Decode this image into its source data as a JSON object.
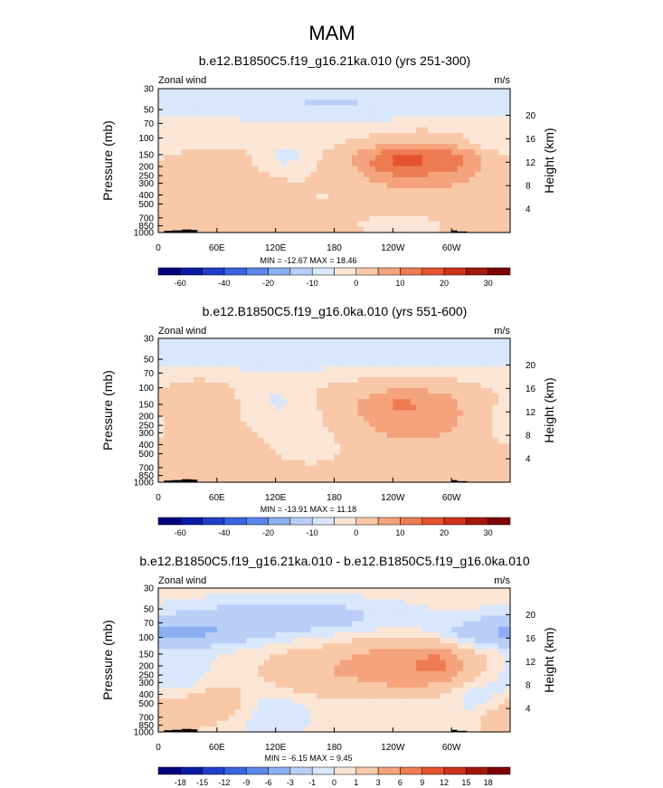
{
  "main_title": "MAM",
  "palettes": {
    "wind": [
      "#00007f",
      "#0b1aa6",
      "#1f3fc9",
      "#3a63e0",
      "#5b86eb",
      "#8bb0f2",
      "#b8cef6",
      "#d8e7fb",
      "#fbe6d6",
      "#f8c8a8",
      "#f4a37c",
      "#ee7b51",
      "#e4542d",
      "#cc3219",
      "#a3160b",
      "#7f0000"
    ]
  },
  "chart_data": [
    {
      "type": "heatmap",
      "id": "panel1",
      "title": "b.e12.B1850C5.f19_g16.21ka.010 (yrs 251-300)",
      "left_label": "Zonal wind",
      "right_label": "m/s",
      "ylabel": "Pressure (mb)",
      "y2label": "Height (km)",
      "y_ticks": [
        30,
        50,
        70,
        100,
        150,
        200,
        250,
        300,
        400,
        500,
        700,
        850,
        1000
      ],
      "y2_ticks": [
        4,
        8,
        12,
        16,
        20
      ],
      "x_ticks": [
        {
          "lon": 0,
          "label": "0"
        },
        {
          "lon": 60,
          "label": "60E"
        },
        {
          "lon": 120,
          "label": "120E"
        },
        {
          "lon": 180,
          "label": "180"
        },
        {
          "lon": 240,
          "label": "120W"
        },
        {
          "lon": 300,
          "label": "60W"
        }
      ],
      "xlim": [
        0,
        360
      ],
      "ylim_mb": [
        1000,
        30
      ],
      "stats": "MIN = -12.67  MAX = 18.46",
      "min": -12.67,
      "max": 18.46,
      "levels": [
        -70,
        -60,
        -50,
        -40,
        -30,
        -20,
        -15,
        -10,
        -5,
        0,
        5,
        10,
        15,
        20,
        25,
        30,
        35
      ],
      "colorbar_labels": [
        {
          "after": 1,
          "label": "-60"
        },
        {
          "after": 3,
          "label": "-40"
        },
        {
          "after": 5,
          "label": "-20"
        },
        {
          "after": 7,
          "label": "-10"
        },
        {
          "after": 9,
          "label": "0"
        },
        {
          "after": 11,
          "label": "10"
        },
        {
          "after": 13,
          "label": "20"
        },
        {
          "after": 15,
          "label": "30"
        }
      ],
      "field": {
        "base": 1.5,
        "blobs": [
          {
            "lon": 255,
            "p": 185,
            "slon": 60,
            "sp": 0.45,
            "amp": 10
          },
          {
            "lon": 245,
            "p": 170,
            "slon": 22,
            "sp": 0.22,
            "amp": 6
          },
          {
            "lon": 295,
            "p": 165,
            "slon": 18,
            "sp": 0.2,
            "amp": 4
          },
          {
            "lon": 180,
            "p": 180,
            "slon": 40,
            "sp": 0.8,
            "amp": -4
          },
          {
            "lon": 130,
            "p": 160,
            "slon": 18,
            "sp": 0.25,
            "amp": -7
          },
          {
            "lon": 355,
            "p": 160,
            "slon": 20,
            "sp": 0.4,
            "amp": -3.5
          },
          {
            "lon": 10,
            "p": 110,
            "slon": 80,
            "sp": 0.15,
            "amp": -4
          },
          {
            "lon": 180,
            "p": 40,
            "slon": 400,
            "sp": 0.45,
            "amp": -11
          },
          {
            "lon": 250,
            "p": 900,
            "slon": 25,
            "sp": 0.2,
            "amp": -5
          }
        ]
      }
    },
    {
      "type": "heatmap",
      "id": "panel2",
      "title": "b.e12.B1850C5.f19_g16.0ka.010 (yrs 551-600)",
      "left_label": "Zonal wind",
      "right_label": "m/s",
      "ylabel": "Pressure (mb)",
      "y2label": "Height (km)",
      "y_ticks": [
        30,
        50,
        70,
        100,
        150,
        200,
        250,
        300,
        400,
        500,
        700,
        850,
        1000
      ],
      "y2_ticks": [
        4,
        8,
        12,
        16,
        20
      ],
      "x_ticks": [
        {
          "lon": 0,
          "label": "0"
        },
        {
          "lon": 60,
          "label": "60E"
        },
        {
          "lon": 120,
          "label": "120E"
        },
        {
          "lon": 180,
          "label": "180"
        },
        {
          "lon": 240,
          "label": "120W"
        },
        {
          "lon": 300,
          "label": "60W"
        }
      ],
      "xlim": [
        0,
        360
      ],
      "ylim_mb": [
        1000,
        30
      ],
      "stats": "MIN = -13.91  MAX = 11.18",
      "min": -13.91,
      "max": 11.18,
      "levels": [
        -70,
        -60,
        -50,
        -40,
        -30,
        -20,
        -15,
        -10,
        -5,
        0,
        5,
        10,
        15,
        20,
        25,
        30,
        35
      ],
      "colorbar_labels": [
        {
          "after": 1,
          "label": "-60"
        },
        {
          "after": 3,
          "label": "-40"
        },
        {
          "after": 5,
          "label": "-20"
        },
        {
          "after": 7,
          "label": "-10"
        },
        {
          "after": 9,
          "label": "0"
        },
        {
          "after": 11,
          "label": "10"
        },
        {
          "after": 13,
          "label": "20"
        },
        {
          "after": 15,
          "label": "30"
        }
      ],
      "field": {
        "base": 1.5,
        "blobs": [
          {
            "lon": 255,
            "p": 180,
            "slon": 55,
            "sp": 0.55,
            "amp": 7.5
          },
          {
            "lon": 250,
            "p": 150,
            "slon": 12,
            "sp": 0.12,
            "amp": 3
          },
          {
            "lon": 40,
            "p": 150,
            "slon": 25,
            "sp": 0.5,
            "amp": 3
          },
          {
            "lon": 120,
            "p": 140,
            "slon": 25,
            "sp": 0.4,
            "amp": -6
          },
          {
            "lon": 160,
            "p": 300,
            "slon": 40,
            "sp": 0.6,
            "amp": -3.5
          },
          {
            "lon": 350,
            "p": 200,
            "slon": 25,
            "sp": 0.6,
            "amp": -4
          },
          {
            "lon": 180,
            "p": 40,
            "slon": 400,
            "sp": 0.45,
            "amp": -11
          }
        ]
      }
    },
    {
      "type": "heatmap",
      "id": "panel3",
      "title": "b.e12.B1850C5.f19_g16.21ka.010 - b.e12.B1850C5.f19_g16.0ka.010",
      "left_label": "Zonal wind",
      "right_label": "m/s",
      "ylabel": "Pressure (mb)",
      "y2label": "Height (km)",
      "y_ticks": [
        30,
        50,
        70,
        100,
        150,
        200,
        250,
        300,
        400,
        500,
        700,
        850,
        1000
      ],
      "y2_ticks": [
        4,
        8,
        12,
        16,
        20
      ],
      "x_ticks": [
        {
          "lon": 0,
          "label": "0"
        },
        {
          "lon": 60,
          "label": "60E"
        },
        {
          "lon": 120,
          "label": "120E"
        },
        {
          "lon": 180,
          "label": "180"
        },
        {
          "lon": 240,
          "label": "120W"
        },
        {
          "lon": 300,
          "label": "60W"
        }
      ],
      "xlim": [
        0,
        360
      ],
      "ylim_mb": [
        1000,
        30
      ],
      "stats": "MIN = -6.15  MAX =  9.45",
      "min": -6.15,
      "max": 9.45,
      "levels": [
        -21,
        -18,
        -15,
        -12,
        -9,
        -6,
        -3,
        -1,
        0,
        1,
        3,
        6,
        9,
        12,
        15,
        18,
        21
      ],
      "colorbar_labels": [
        {
          "after": 1,
          "label": "-18"
        },
        {
          "after": 2,
          "label": "-15"
        },
        {
          "after": 3,
          "label": "-12"
        },
        {
          "after": 4,
          "label": "-9"
        },
        {
          "after": 5,
          "label": "-6"
        },
        {
          "after": 6,
          "label": "-3"
        },
        {
          "after": 7,
          "label": "-1"
        },
        {
          "after": 8,
          "label": "0"
        },
        {
          "after": 9,
          "label": "1"
        },
        {
          "after": 10,
          "label": "3"
        },
        {
          "after": 11,
          "label": "6"
        },
        {
          "after": 12,
          "label": "9"
        },
        {
          "after": 13,
          "label": "12"
        },
        {
          "after": 14,
          "label": "15"
        },
        {
          "after": 15,
          "label": "18"
        }
      ],
      "field": {
        "base": 0.4,
        "blobs": [
          {
            "lon": 255,
            "p": 200,
            "slon": 45,
            "sp": 0.4,
            "amp": 5.5
          },
          {
            "lon": 285,
            "p": 190,
            "slon": 10,
            "sp": 0.2,
            "amp": 3
          },
          {
            "lon": 40,
            "p": 90,
            "slon": 50,
            "sp": 0.25,
            "amp": -2.5
          },
          {
            "lon": 340,
            "p": 90,
            "slon": 40,
            "sp": 0.25,
            "amp": -2
          },
          {
            "lon": 130,
            "p": 60,
            "slon": 80,
            "sp": 0.3,
            "amp": -2.5
          },
          {
            "lon": 150,
            "p": 250,
            "slon": 35,
            "sp": 0.4,
            "amp": 2
          },
          {
            "lon": 110,
            "p": 550,
            "slon": 30,
            "sp": 0.5,
            "amp": -2
          },
          {
            "lon": 20,
            "p": 250,
            "slon": 25,
            "sp": 0.4,
            "amp": -1.5
          },
          {
            "lon": 70,
            "p": 500,
            "slon": 35,
            "sp": 0.4,
            "amp": 2
          },
          {
            "lon": 355,
            "p": 700,
            "slon": 25,
            "sp": 0.4,
            "amp": 2
          },
          {
            "lon": 330,
            "p": 450,
            "slon": 20,
            "sp": 0.4,
            "amp": -1.5
          }
        ]
      }
    }
  ]
}
